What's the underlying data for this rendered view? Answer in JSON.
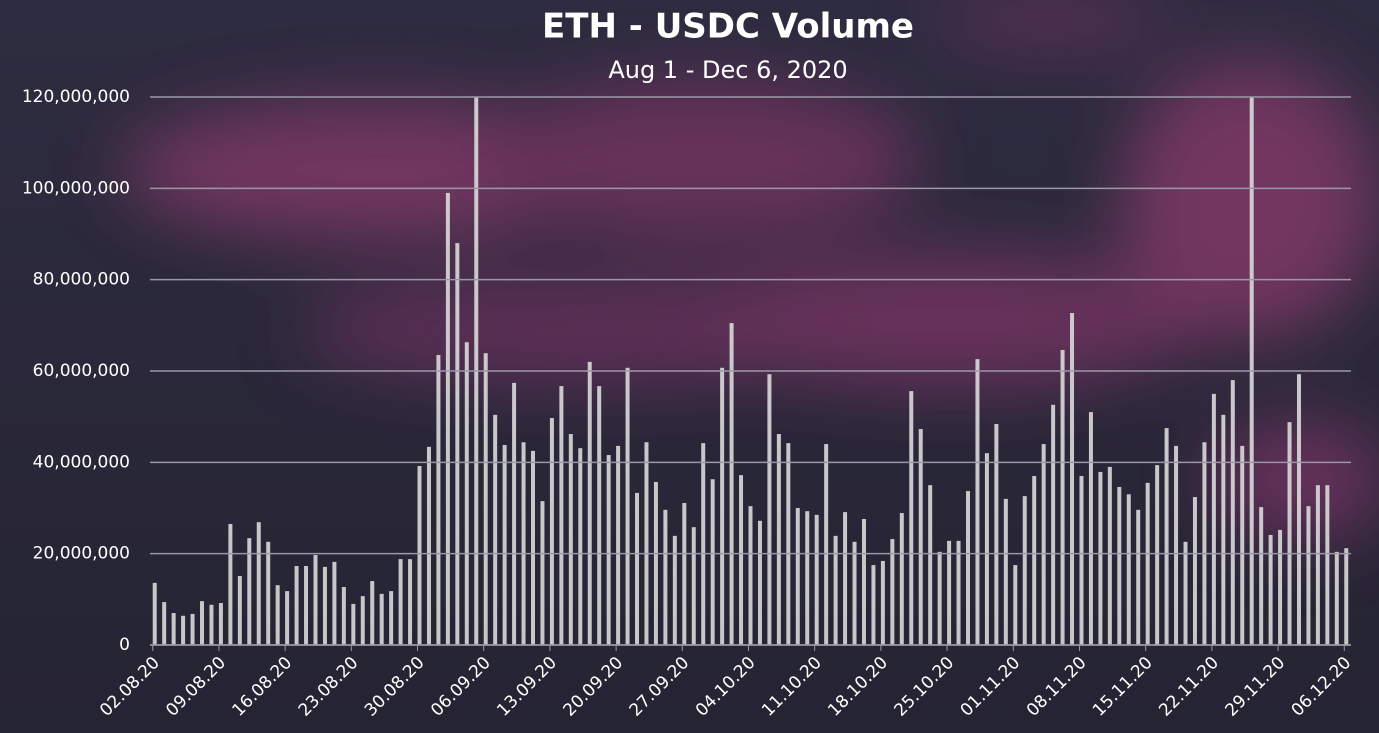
{
  "chart_data": {
    "type": "bar",
    "title": "ETH - USDC Volume",
    "subtitle": "Aug 1 - Dec 6, 2020",
    "categories": [
      "02.08.20",
      null,
      null,
      null,
      null,
      null,
      null,
      "09.08.20",
      null,
      null,
      null,
      null,
      null,
      null,
      "16.08.20",
      null,
      null,
      null,
      null,
      null,
      null,
      "23.08.20",
      null,
      null,
      null,
      null,
      null,
      null,
      "30.08.20",
      null,
      null,
      null,
      null,
      null,
      null,
      "06.09.20",
      null,
      null,
      null,
      null,
      null,
      null,
      "13.09.20",
      null,
      null,
      null,
      null,
      null,
      null,
      "20.09.20",
      null,
      null,
      null,
      null,
      null,
      null,
      "27.09.20",
      null,
      null,
      null,
      null,
      null,
      null,
      "04.10.20",
      null,
      null,
      null,
      null,
      null,
      null,
      "11.10.20",
      null,
      null,
      null,
      null,
      null,
      null,
      "18.10.20",
      null,
      null,
      null,
      null,
      null,
      null,
      "25.10.20",
      null,
      null,
      null,
      null,
      null,
      null,
      "01.11.20",
      null,
      null,
      null,
      null,
      null,
      null,
      "08.11.20",
      null,
      null,
      null,
      null,
      null,
      null,
      "15.11.20",
      null,
      null,
      null,
      null,
      null,
      null,
      "22.11.20",
      null,
      null,
      null,
      null,
      null,
      null,
      "29.11.20",
      null,
      null,
      null,
      null,
      null,
      null,
      "06.12.20"
    ],
    "values": [
      13600000,
      9400000,
      7000000,
      6400000,
      6800000,
      9600000,
      8800000,
      9200000,
      26500000,
      15100000,
      23400000,
      26900000,
      22600000,
      13100000,
      11800000,
      17300000,
      17300000,
      19700000,
      17100000,
      18200000,
      12700000,
      9000000,
      10700000,
      14000000,
      11200000,
      11800000,
      18800000,
      18800000,
      39200000,
      43400000,
      63500000,
      99000000,
      88000000,
      66300000,
      125000000,
      63900000,
      50400000,
      43800000,
      57400000,
      44400000,
      42500000,
      31500000,
      49700000,
      56700000,
      46200000,
      43100000,
      62000000,
      56700000,
      41600000,
      43600000,
      60700000,
      33300000,
      44400000,
      35700000,
      29600000,
      23900000,
      31100000,
      25800000,
      44200000,
      36300000,
      60700000,
      70500000,
      37200000,
      30400000,
      27200000,
      59300000,
      46200000,
      44200000,
      30000000,
      29300000,
      28500000,
      44000000,
      23900000,
      29100000,
      22600000,
      27600000,
      17500000,
      18400000,
      23200000,
      28900000,
      55600000,
      47300000,
      35000000,
      20400000,
      22800000,
      22800000,
      33700000,
      62600000,
      42000000,
      48400000,
      32000000,
      17500000,
      32600000,
      37000000,
      44000000,
      52600000,
      64600000,
      72700000,
      37000000,
      51000000,
      37900000,
      39000000,
      34600000,
      33000000,
      29600000,
      35500000,
      39400000,
      47500000,
      43600000,
      22600000,
      32400000,
      44400000,
      55000000,
      50400000,
      58000000,
      43600000,
      125000000,
      30200000,
      24100000,
      25200000,
      48800000,
      59300000,
      30400000,
      35000000,
      35000000,
      20400000,
      21200000
    ],
    "color": "#d9d9d9",
    "ylim": [
      0,
      120000000
    ],
    "yticks": [
      0,
      {
        "value": 20000000,
        "label": "20,000,000"
      },
      {
        "value": 40000000,
        "label": "40,000,000"
      },
      {
        "value": 60000000,
        "label": "60,000,000"
      },
      {
        "value": 80000000,
        "label": "80,000,000"
      },
      {
        "value": 100000000,
        "label": "100,000,000"
      },
      {
        "value": 120000000,
        "label": "120,000,000"
      }
    ],
    "grid": true
  }
}
